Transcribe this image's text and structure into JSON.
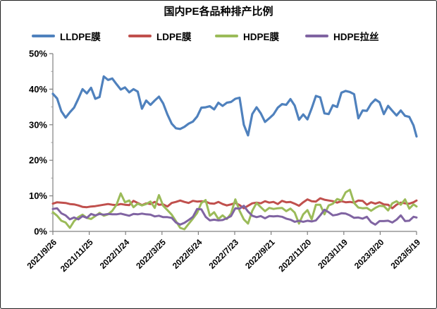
{
  "window": {
    "background": "#ffffff",
    "border_color": "#202020"
  },
  "chart_data": {
    "type": "line",
    "title": "国内PE各品种排产比例",
    "xlabel": "",
    "ylabel": "",
    "legend_position": "top",
    "grid": false,
    "ylim": [
      0,
      50
    ],
    "ytick_values": [
      0,
      10,
      20,
      30,
      40,
      50
    ],
    "yticklabels": [
      "0%",
      "10%",
      "20%",
      "30%",
      "40%",
      "50%"
    ],
    "xticklabels": [
      "2021/9/26",
      "2021/11/25",
      "2022/1/24",
      "2022/3/25",
      "2022/5/24",
      "2022/7/23",
      "2022/9/21",
      "2022/11/20",
      "2023/1/19",
      "2023/3/20",
      "2023/5/19"
    ],
    "xtick_days": [
      0,
      60,
      120,
      180,
      240,
      300,
      360,
      420,
      480,
      540,
      600
    ],
    "x_total_days": 600,
    "x_dates": [
      "2021/9/26",
      "2021/10/3",
      "2021/10/10",
      "2021/10/17",
      "2021/10/24",
      "2021/10/31",
      "2021/11/7",
      "2021/11/14",
      "2021/11/21",
      "2021/11/28",
      "2021/12/5",
      "2021/12/12",
      "2021/12/19",
      "2021/12/26",
      "2022/1/2",
      "2022/1/9",
      "2022/1/16",
      "2022/1/23",
      "2022/1/30",
      "2022/2/6",
      "2022/2/13",
      "2022/2/20",
      "2022/2/27",
      "2022/3/6",
      "2022/3/13",
      "2022/3/20",
      "2022/3/27",
      "2022/4/3",
      "2022/4/10",
      "2022/4/17",
      "2022/4/24",
      "2022/5/1",
      "2022/5/8",
      "2022/5/15",
      "2022/5/22",
      "2022/5/29",
      "2022/6/5",
      "2022/6/12",
      "2022/6/19",
      "2022/6/26",
      "2022/7/3",
      "2022/7/10",
      "2022/7/17",
      "2022/7/24",
      "2022/7/31",
      "2022/8/7",
      "2022/8/14",
      "2022/8/21",
      "2022/8/28",
      "2022/9/4",
      "2022/9/11",
      "2022/9/18",
      "2022/9/25",
      "2022/10/2",
      "2022/10/9",
      "2022/10/16",
      "2022/10/23",
      "2022/10/30",
      "2022/11/6",
      "2022/11/13",
      "2022/11/20",
      "2022/11/27",
      "2022/12/4",
      "2022/12/11",
      "2022/12/18",
      "2022/12/25",
      "2023/1/1",
      "2023/1/8",
      "2023/1/15",
      "2023/1/22",
      "2023/1/29",
      "2023/2/5",
      "2023/2/12",
      "2023/2/19",
      "2023/2/26",
      "2023/3/5",
      "2023/3/12",
      "2023/3/19",
      "2023/3/26",
      "2023/4/2",
      "2023/4/9",
      "2023/4/16",
      "2023/4/23",
      "2023/4/30",
      "2023/5/7",
      "2023/5/14",
      "2023/5/19"
    ],
    "series": [
      {
        "name": "LLDPE膜",
        "color": "#4F81BD",
        "values": [
          38.7,
          37.4,
          33.8,
          32.0,
          33.5,
          34.8,
          37.3,
          40.0,
          38.8,
          40.4,
          37.3,
          37.8,
          43.6,
          42.6,
          43.0,
          41.4,
          39.9,
          40.5,
          39.1,
          40.0,
          39.3,
          34.5,
          36.8,
          35.6,
          36.8,
          37.9,
          36.0,
          32.9,
          30.3,
          29.0,
          28.8,
          29.4,
          30.3,
          30.9,
          32.3,
          34.8,
          34.9,
          35.2,
          34.3,
          36.2,
          35.3,
          36.2,
          36.4,
          37.3,
          37.6,
          30.0,
          27.0,
          33.0,
          34.9,
          33.2,
          30.8,
          31.8,
          32.9,
          34.8,
          35.8,
          35.6,
          37.2,
          35.4,
          31.4,
          32.9,
          31.5,
          34.6,
          38.1,
          37.7,
          33.2,
          33.0,
          35.5,
          35.0,
          39.0,
          39.5,
          39.2,
          38.6,
          31.8,
          34.0,
          33.9,
          35.9,
          37.1,
          36.3,
          33.0,
          35.3,
          33.9,
          32.6,
          34.0,
          32.5,
          32.2,
          29.8,
          26.7
        ]
      },
      {
        "name": "LDPE膜",
        "color": "#C0504D",
        "values": [
          7.8,
          8.2,
          8.1,
          8.0,
          7.7,
          7.6,
          7.3,
          6.9,
          6.8,
          7.0,
          7.1,
          7.3,
          7.5,
          7.7,
          7.5,
          7.4,
          7.7,
          7.5,
          7.4,
          8.6,
          8.0,
          7.4,
          7.9,
          7.7,
          8.3,
          7.5,
          7.6,
          7.0,
          8.0,
          8.3,
          8.7,
          8.3,
          8.0,
          8.6,
          8.4,
          8.5,
          8.4,
          7.9,
          7.8,
          8.3,
          7.7,
          7.3,
          7.6,
          8.0,
          7.4,
          6.5,
          7.2,
          7.9,
          8.1,
          7.9,
          8.5,
          8.1,
          8.3,
          7.7,
          8.6,
          8.2,
          8.3,
          7.8,
          7.2,
          8.2,
          9.0,
          8.5,
          8.4,
          9.3,
          8.9,
          8.7,
          8.5,
          8.1,
          8.5,
          8.2,
          8.3,
          8.1,
          8.7,
          8.6,
          7.5,
          8.2,
          7.8,
          8.2,
          7.6,
          7.5,
          6.5,
          7.5,
          8.1,
          7.9,
          7.8,
          8.2,
          8.7
        ]
      },
      {
        "name": "HDPE膜",
        "color": "#9BBB59",
        "values": [
          5.4,
          4.4,
          3.0,
          2.5,
          1.0,
          2.9,
          4.0,
          4.7,
          3.8,
          3.5,
          4.3,
          5.2,
          4.4,
          4.8,
          5.8,
          7.5,
          10.7,
          8.2,
          8.7,
          6.8,
          7.8,
          7.3,
          7.7,
          8.4,
          6.6,
          10.2,
          7.2,
          6.0,
          4.7,
          2.9,
          1.0,
          0.6,
          2.1,
          3.6,
          5.2,
          8.0,
          8.8,
          4.4,
          5.4,
          3.5,
          4.5,
          3.5,
          5.0,
          9.0,
          5.8,
          3.4,
          2.2,
          5.8,
          8.0,
          6.8,
          5.7,
          6.6,
          6.3,
          6.5,
          6.6,
          5.7,
          6.4,
          5.3,
          2.2,
          4.8,
          6.0,
          3.4,
          7.5,
          7.5,
          4.8,
          7.3,
          7.8,
          9.1,
          8.7,
          11.0,
          11.7,
          8.0,
          6.7,
          6.5,
          6.6,
          5.8,
          6.6,
          7.2,
          7.1,
          5.9,
          7.9,
          8.5,
          7.5,
          9.0,
          6.4,
          7.6,
          7.0
        ]
      },
      {
        "name": "HDPE拉丝",
        "color": "#8064A2",
        "values": [
          6.3,
          6.5,
          5.1,
          4.5,
          3.4,
          3.9,
          3.4,
          4.3,
          3.8,
          4.9,
          4.5,
          4.9,
          4.7,
          4.9,
          4.8,
          4.8,
          5.0,
          4.7,
          4.4,
          4.9,
          4.8,
          5.0,
          4.8,
          4.7,
          4.2,
          4.4,
          4.0,
          4.0,
          3.8,
          2.5,
          1.9,
          2.4,
          3.2,
          4.1,
          6.3,
          6.2,
          4.1,
          3.1,
          3.3,
          3.1,
          3.2,
          3.7,
          4.3,
          6.5,
          6.4,
          7.2,
          5.6,
          4.4,
          4.0,
          4.3,
          3.7,
          4.3,
          4.2,
          4.3,
          4.1,
          3.6,
          3.3,
          2.7,
          3.0,
          2.7,
          3.0,
          2.8,
          3.1,
          4.5,
          6.1,
          5.4,
          4.5,
          4.7,
          5.1,
          5.0,
          4.5,
          3.8,
          3.9,
          3.6,
          4.1,
          2.6,
          1.9,
          2.9,
          2.9,
          3.0,
          2.5,
          3.3,
          4.5,
          2.9,
          3.0,
          4.1,
          3.9
        ]
      }
    ]
  }
}
